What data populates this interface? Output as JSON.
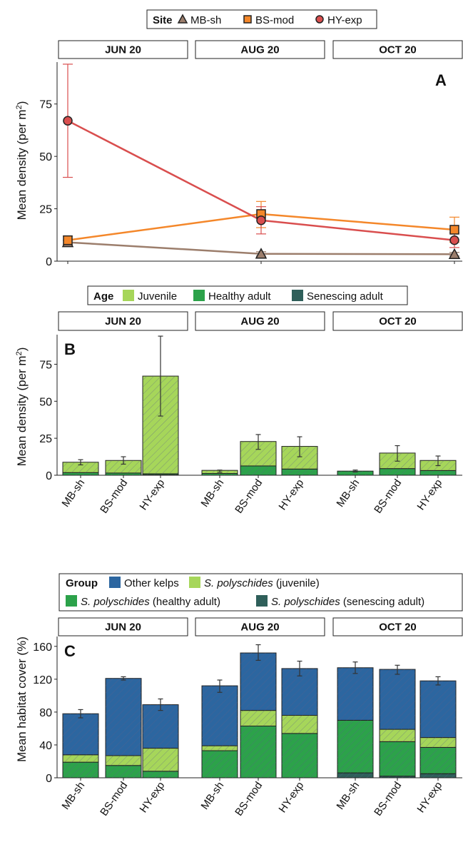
{
  "figure": {
    "facets": [
      "JUN 20",
      "AUG 20",
      "OCT 20"
    ],
    "site_labels": [
      "MB-sh",
      "BS-mod",
      "HY-exp"
    ],
    "colors": {
      "line_mb": "#9c7e6c",
      "line_bs": "#f4872a",
      "line_hy": "#d94e4e",
      "juvenile": "#a6d65a",
      "healthy": "#2ca24a",
      "senescing": "#2f5f5a",
      "other_kelps": "#2c66a0"
    }
  },
  "chart_data": [
    {
      "type": "line",
      "panel_letter": "A",
      "ylabel": "Mean density (per m",
      "ylabel_sup": "2",
      "ylabel_close": ")",
      "ylim": [
        0,
        95
      ],
      "yticks": [
        0,
        25,
        50,
        75
      ],
      "legend": {
        "title": "Site",
        "entries": [
          "MB-sh",
          "BS-mod",
          "HY-exp"
        ],
        "markers": [
          "triangle",
          "square",
          "circle"
        ]
      },
      "x": [
        "JUN 20",
        "AUG 20",
        "OCT 20"
      ],
      "series": [
        {
          "name": "MB-sh",
          "values": [
            9,
            3.5,
            3.3
          ],
          "err_low": [
            8,
            2.5,
            2.5
          ],
          "err_high": [
            10,
            4.5,
            4.2
          ]
        },
        {
          "name": "BS-mod",
          "values": [
            10,
            22.5,
            15
          ],
          "err_low": [
            8,
            16,
            9
          ],
          "err_high": [
            12,
            28.5,
            21
          ]
        },
        {
          "name": "HY-exp",
          "values": [
            67,
            19.5,
            10
          ],
          "err_low": [
            40,
            13,
            6.5
          ],
          "err_high": [
            94,
            26,
            13.5
          ]
        }
      ]
    },
    {
      "type": "bar",
      "stacked": true,
      "panel_letter": "B",
      "ylabel": "Mean density (per m",
      "ylabel_sup": "2",
      "ylabel_close": ")",
      "ylim": [
        0,
        95
      ],
      "yticks": [
        0,
        25,
        50,
        75
      ],
      "legend": {
        "title": "Age",
        "entries": [
          "Juvenile",
          "Healthy adult",
          "Senescing adult"
        ]
      },
      "categories": [
        "MB-sh",
        "BS-mod",
        "HY-exp"
      ],
      "facets": [
        {
          "name": "JUN 20",
          "senescing": [
            0,
            0,
            0.3
          ],
          "healthy": [
            1.8,
            1.5,
            0.7
          ],
          "juvenile": [
            7,
            8.5,
            66
          ],
          "err_low": [
            7,
            7.5,
            40
          ],
          "err_high": [
            10.5,
            12.5,
            94
          ]
        },
        {
          "name": "AUG 20",
          "senescing": [
            0,
            0,
            0
          ],
          "healthy": [
            1.2,
            6.3,
            4.2
          ],
          "juvenile": [
            2.1,
            16.5,
            15.3
          ],
          "err_low": [
            2,
            17.5,
            12.5
          ],
          "err_high": [
            3.5,
            27.5,
            26
          ]
        },
        {
          "name": "OCT 20",
          "senescing": [
            0,
            0,
            0
          ],
          "healthy": [
            2.8,
            4.5,
            3.2
          ],
          "juvenile": [
            0,
            10.5,
            6.8
          ],
          "err_low": [
            2.2,
            9.5,
            6.5
          ],
          "err_high": [
            3.5,
            20,
            13
          ]
        }
      ]
    },
    {
      "type": "bar",
      "stacked": true,
      "panel_letter": "C",
      "ylabel": "Mean habitat cover (%)",
      "ylim": [
        0,
        172
      ],
      "yticks": [
        0,
        40,
        80,
        120,
        160
      ],
      "legend": {
        "title": "Group",
        "entries": [
          {
            "name": "Other kelps",
            "italic": "",
            "rest": "Other kelps"
          },
          {
            "name": "S. polyschides (juvenile)",
            "italic": "S. polyschides",
            "rest": " (juvenile)"
          },
          {
            "name": "S. polyschides (healthy adult)",
            "italic": "S. polyschides",
            "rest": " (healthy adult)"
          },
          {
            "name": "S. polyschides (senescing adult)",
            "italic": "S. polyschides",
            "rest": " (senescing adult)"
          }
        ]
      },
      "categories": [
        "MB-sh",
        "BS-mod",
        "HY-exp"
      ],
      "facets": [
        {
          "name": "JUN 20",
          "senescing": [
            0,
            0,
            0
          ],
          "healthy": [
            19,
            15,
            8
          ],
          "juvenile": [
            9,
            12,
            28
          ],
          "other": [
            50,
            94,
            53
          ],
          "err_low": [
            73,
            119,
            82
          ],
          "err_high": [
            83,
            123,
            96
          ]
        },
        {
          "name": "AUG 20",
          "senescing": [
            0,
            0,
            0
          ],
          "healthy": [
            33,
            63,
            54
          ],
          "juvenile": [
            6,
            19,
            22
          ],
          "other": [
            73,
            70,
            57
          ],
          "err_low": [
            104,
            143,
            124
          ],
          "err_high": [
            119,
            162,
            142
          ]
        },
        {
          "name": "OCT 20",
          "senescing": [
            6,
            2,
            5
          ],
          "healthy": [
            64,
            42,
            32
          ],
          "juvenile": [
            0,
            15,
            12
          ],
          "other": [
            64,
            73,
            69
          ],
          "err_low": [
            127,
            126,
            113
          ],
          "err_high": [
            141,
            137,
            123
          ]
        }
      ]
    }
  ]
}
